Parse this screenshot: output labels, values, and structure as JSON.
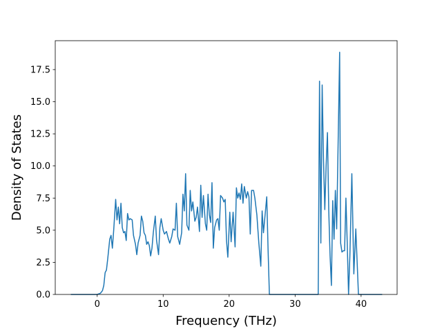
{
  "chart_data": {
    "type": "line",
    "x_label": "Frequency (THz)",
    "y_label": "Density of States",
    "color": "#1f77b4",
    "x": [
      -4.0,
      0,
      0.5,
      0.8,
      1.0,
      1.2,
      1.4,
      1.6,
      1.9,
      2.1,
      2.3,
      2.5,
      2.8,
      3.0,
      3.2,
      3.4,
      3.6,
      3.8,
      4.0,
      4.2,
      4.4,
      4.6,
      4.8,
      5.0,
      5.3,
      5.5,
      5.8,
      6.0,
      6.2,
      6.5,
      6.7,
      6.9,
      7.1,
      7.3,
      7.5,
      7.7,
      7.9,
      8.1,
      8.3,
      8.5,
      8.8,
      9.0,
      9.3,
      9.5,
      9.7,
      10.0,
      10.2,
      10.5,
      10.8,
      11.0,
      11.3,
      11.5,
      11.8,
      12.0,
      12.2,
      12.5,
      12.8,
      13.0,
      13.2,
      13.4,
      13.6,
      13.9,
      14.1,
      14.3,
      14.5,
      14.8,
      15.0,
      15.2,
      15.5,
      15.7,
      15.9,
      16.1,
      16.4,
      16.6,
      16.8,
      17.0,
      17.2,
      17.4,
      17.6,
      17.8,
      18.1,
      18.3,
      18.5,
      18.7,
      19.0,
      19.2,
      19.4,
      19.6,
      19.8,
      20.1,
      20.3,
      20.6,
      20.9,
      21.1,
      21.3,
      21.5,
      21.7,
      21.9,
      22.1,
      22.3,
      22.6,
      22.8,
      23.0,
      23.2,
      23.4,
      23.7,
      23.9,
      24.2,
      24.5,
      24.8,
      25.0,
      25.2,
      25.7,
      25.9,
      26.1,
      33.5,
      33.7,
      33.9,
      34.1,
      34.3,
      34.5,
      34.7,
      34.9,
      35.1,
      35.3,
      35.5,
      35.7,
      35.9,
      36.1,
      36.3,
      36.75,
      36.9,
      37.1,
      37.3,
      37.5,
      37.7,
      37.9,
      38.1,
      38.3,
      38.6,
      38.9,
      39.2,
      39.6,
      43.2
    ],
    "values": [
      0,
      0,
      0.1,
      0.3,
      0.7,
      1.7,
      1.9,
      2.8,
      4.3,
      4.6,
      3.6,
      5.0,
      7.4,
      5.8,
      6.8,
      5.5,
      7.1,
      5.2,
      4.8,
      4.9,
      4.2,
      6.3,
      5.8,
      5.9,
      5.8,
      4.6,
      3.9,
      3.1,
      4.0,
      4.6,
      6.1,
      5.7,
      4.8,
      4.6,
      3.9,
      4.1,
      3.8,
      3.0,
      3.6,
      4.8,
      6.1,
      4.2,
      3.1,
      5.2,
      5.9,
      5.0,
      4.7,
      4.9,
      4.3,
      4.0,
      4.5,
      5.1,
      5.0,
      7.1,
      4.5,
      3.9,
      4.8,
      7.8,
      6.5,
      9.4,
      5.4,
      5.0,
      8.1,
      6.5,
      7.2,
      5.7,
      6.0,
      6.8,
      4.9,
      8.5,
      6.0,
      7.7,
      5.5,
      5.0,
      7.8,
      6.2,
      5.6,
      8.7,
      3.6,
      5.2,
      5.8,
      5.9,
      5.0,
      7.7,
      7.5,
      7.2,
      7.4,
      4.2,
      2.9,
      6.4,
      4.1,
      6.4,
      3.7,
      8.3,
      7.5,
      7.9,
      7.4,
      8.6,
      7.1,
      8.4,
      7.5,
      8.0,
      7.6,
      4.7,
      8.1,
      8.1,
      7.5,
      6.2,
      4.0,
      2.2,
      6.5,
      4.8,
      7.6,
      3.5,
      0,
      0,
      16.6,
      4.0,
      16.3,
      10.5,
      6.6,
      10.0,
      12.6,
      6.5,
      3.0,
      0.7,
      7.3,
      4.3,
      8.1,
      5.1,
      18.85,
      4.0,
      3.3,
      3.4,
      3.4,
      7.5,
      4.0,
      0,
      3.0,
      9.4,
      1.6,
      5.1,
      0,
      0
    ],
    "xlim": [
      -6.36,
      45.46
    ],
    "ylim": [
      0,
      19.75
    ],
    "xticks": [
      0,
      10,
      20,
      30,
      40
    ],
    "yticks": [
      {
        "value": 0,
        "label": "0.0"
      },
      {
        "value": 2.5,
        "label": "2.5"
      },
      {
        "value": 5,
        "label": "5.0"
      },
      {
        "value": 7.5,
        "label": "7.5"
      },
      {
        "value": 10,
        "label": "10.0"
      },
      {
        "value": 12.5,
        "label": "12.5"
      },
      {
        "value": 15,
        "label": "15.0"
      },
      {
        "value": 17.5,
        "label": "17.5"
      }
    ]
  }
}
